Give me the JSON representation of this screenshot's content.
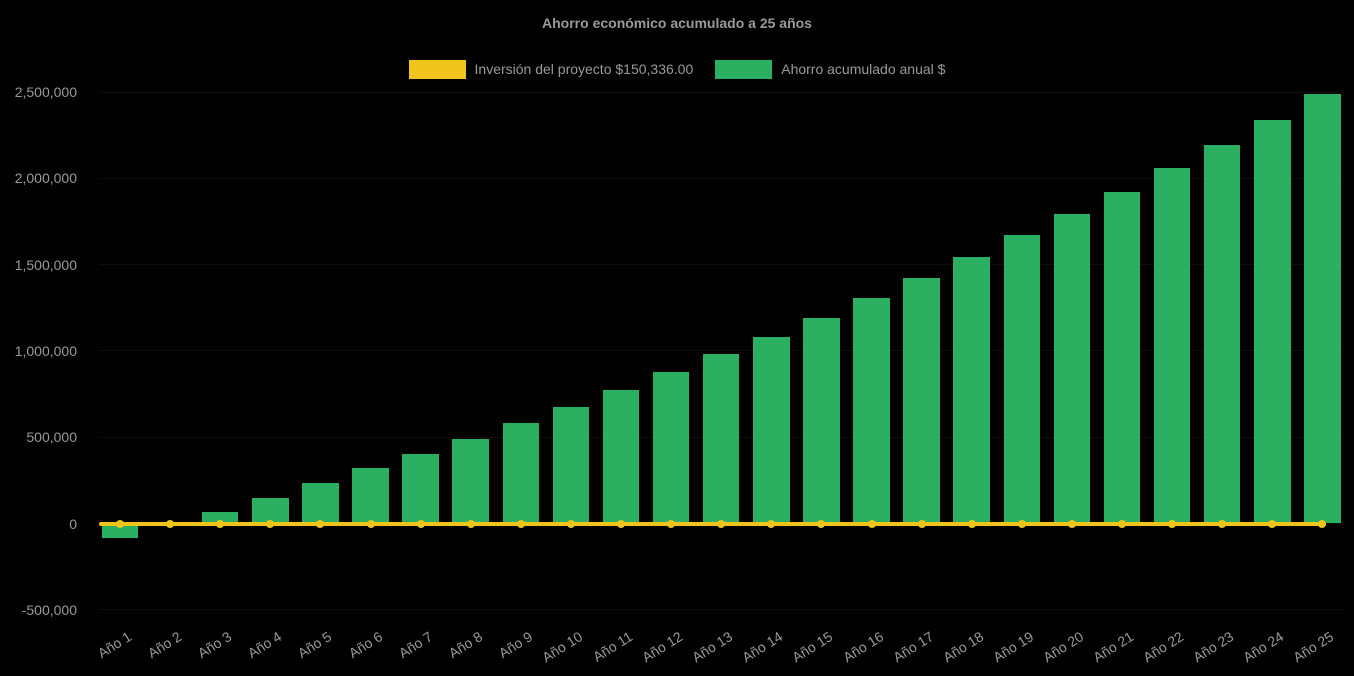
{
  "chart_data": {
    "type": "bar",
    "title": "Ahorro económico acumulado a 25 años",
    "background": "#000000",
    "text_color": "#9a9a9a",
    "legend_position": "top",
    "grid": "off (near-invisible faint horizontal lines)",
    "xlabel": "",
    "ylabel": "",
    "ylim": [
      -500000,
      2500000
    ],
    "ytick_values": [
      2500000,
      2000000,
      1500000,
      1000000,
      500000,
      0,
      -500000
    ],
    "ytick_labels": [
      "2,500,000",
      "2,000,000",
      "1,500,000",
      "1,000,000",
      "500,000",
      "0",
      "-500,000"
    ],
    "categories": [
      "Año 1",
      "Año 2",
      "Año 3",
      "Año 4",
      "Año 5",
      "Año 6",
      "Año 7",
      "Año 8",
      "Año 9",
      "Año 10",
      "Año 11",
      "Año 12",
      "Año 13",
      "Año 14",
      "Año 15",
      "Año 16",
      "Año 17",
      "Año 18",
      "Año 19",
      "Año 20",
      "Año 21",
      "Año 22",
      "Año 23",
      "Año 24",
      "Año 25"
    ],
    "series": [
      {
        "name": "Inversión del proyecto $150,336.00",
        "type": "line",
        "color": "#eec41d",
        "values": [
          0,
          0,
          0,
          0,
          0,
          0,
          0,
          0,
          0,
          0,
          0,
          0,
          0,
          0,
          0,
          0,
          0,
          0,
          0,
          0,
          0,
          0,
          0,
          0,
          0
        ]
      },
      {
        "name": "Ahorro acumulado anual $",
        "type": "bar",
        "color": "#2bb062",
        "values": [
          -85000,
          -10000,
          65000,
          150000,
          235000,
          320000,
          405000,
          490000,
          585000,
          675000,
          775000,
          875000,
          980000,
          1080000,
          1190000,
          1305000,
          1420000,
          1545000,
          1670000,
          1795000,
          1920000,
          2060000,
          2195000,
          2340000,
          2490000
        ]
      }
    ]
  }
}
